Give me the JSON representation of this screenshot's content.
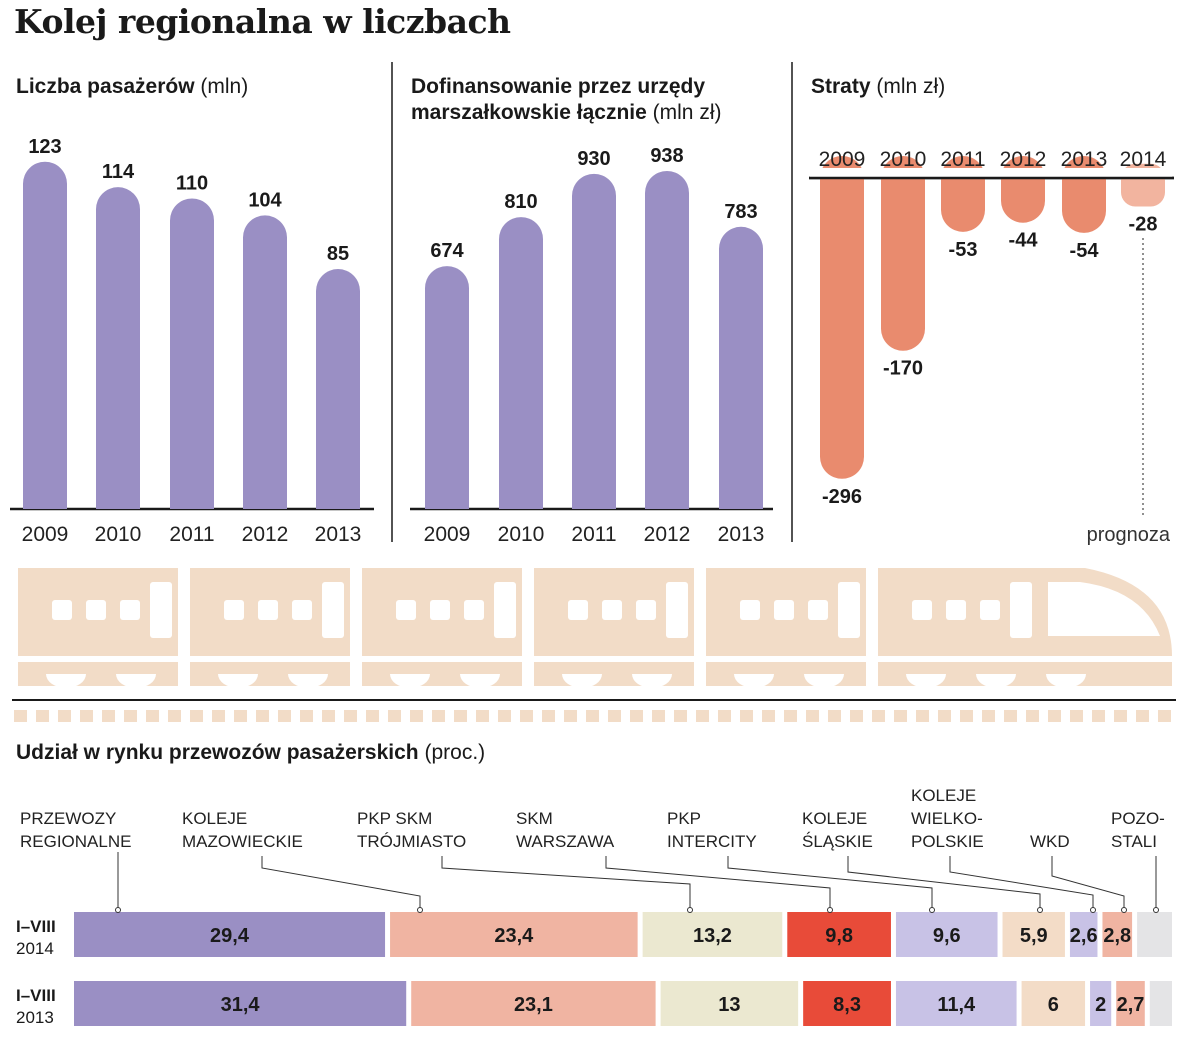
{
  "page": {
    "title": "Kolej regionalna w liczbach",
    "note": "prognoza"
  },
  "colors": {
    "purple": "#9a8fc4",
    "loss": "#e98b6e",
    "loss_forecast": "#f2b49f",
    "train": "#f2dcc7",
    "rail": "#1a1a1a"
  },
  "chart_data": [
    {
      "type": "bar",
      "title": "Liczba pasażerów",
      "unit": "(mln)",
      "categories": [
        "2009",
        "2010",
        "2011",
        "2012",
        "2013"
      ],
      "values": [
        123,
        114,
        110,
        104,
        85
      ],
      "labels": [
        "123",
        "114",
        "110",
        "104",
        "85"
      ],
      "ylim": [
        0,
        130
      ]
    },
    {
      "type": "bar",
      "title_lines": [
        "Dofinansowanie przez urzędy",
        "marszałkowskie łącznie"
      ],
      "unit": "(mln zł)",
      "categories": [
        "2009",
        "2010",
        "2011",
        "2012",
        "2013"
      ],
      "values": [
        674,
        810,
        930,
        938,
        783
      ],
      "labels": [
        "674",
        "810",
        "930",
        "938",
        "783"
      ],
      "ylim": [
        0,
        1010
      ]
    },
    {
      "type": "bar",
      "title": "Straty",
      "unit": "(mln zł)",
      "categories": [
        "2009",
        "2010",
        "2011",
        "2012",
        "2013",
        "2014"
      ],
      "values": [
        -296,
        -170,
        -53,
        -44,
        -54,
        -28
      ],
      "labels": [
        "-296",
        "-170",
        "-53",
        "-44",
        "-54",
        "-28"
      ],
      "ylim": [
        -310,
        0
      ],
      "forecast": [
        false,
        false,
        false,
        false,
        false,
        true
      ]
    },
    {
      "type": "bar",
      "orientation": "horizontal-stacked",
      "title": "Udział w rynku przewozów pasażerskich",
      "unit": "(proc.)",
      "carriers": [
        {
          "lines": [
            "PRZEWOZY",
            "REGIONALNE"
          ],
          "color": "#9a8fc4"
        },
        {
          "lines": [
            "KOLEJE",
            "MAZOWIECKIE"
          ],
          "color": "#f0b4a2"
        },
        {
          "lines": [
            "PKP SKM",
            "TRÓJMIASTO"
          ],
          "color": "#ebe8d0"
        },
        {
          "lines": [
            "SKM",
            "WARSZAWA"
          ],
          "color": "#e84b39"
        },
        {
          "lines": [
            "PKP",
            "INTERCITY"
          ],
          "color": "#c8c2e6"
        },
        {
          "lines": [
            "KOLEJE",
            "ŚLĄSKIE"
          ],
          "color": "#f3dcc7"
        },
        {
          "lines": [
            "KOLEJE",
            "WIELKO-",
            "POLSKIE"
          ],
          "color": "#c8c2e6"
        },
        {
          "lines": [
            "WKD"
          ],
          "color": "#f0b4a2"
        },
        {
          "lines": [
            "POZO-",
            "STALI"
          ],
          "color": "#e4e4e6"
        }
      ],
      "series": [
        {
          "name_lines": [
            "I–VIII",
            "2014"
          ],
          "values": [
            29.4,
            23.4,
            13.2,
            9.8,
            9.6,
            5.9,
            2.6,
            2.8,
            3.3
          ],
          "labels": [
            "29,4",
            "23,4",
            "13,2",
            "9,8",
            "9,6",
            "5,9",
            "2,6",
            "2,8",
            ""
          ]
        },
        {
          "name_lines": [
            "I–VIII",
            "2013"
          ],
          "values": [
            31.4,
            23.1,
            13,
            8.3,
            11.4,
            6,
            2,
            2.7,
            2.1
          ],
          "labels": [
            "31,4",
            "23,1",
            "13",
            "8,3",
            "11,4",
            "6",
            "2",
            "2,7",
            ""
          ]
        }
      ]
    }
  ]
}
